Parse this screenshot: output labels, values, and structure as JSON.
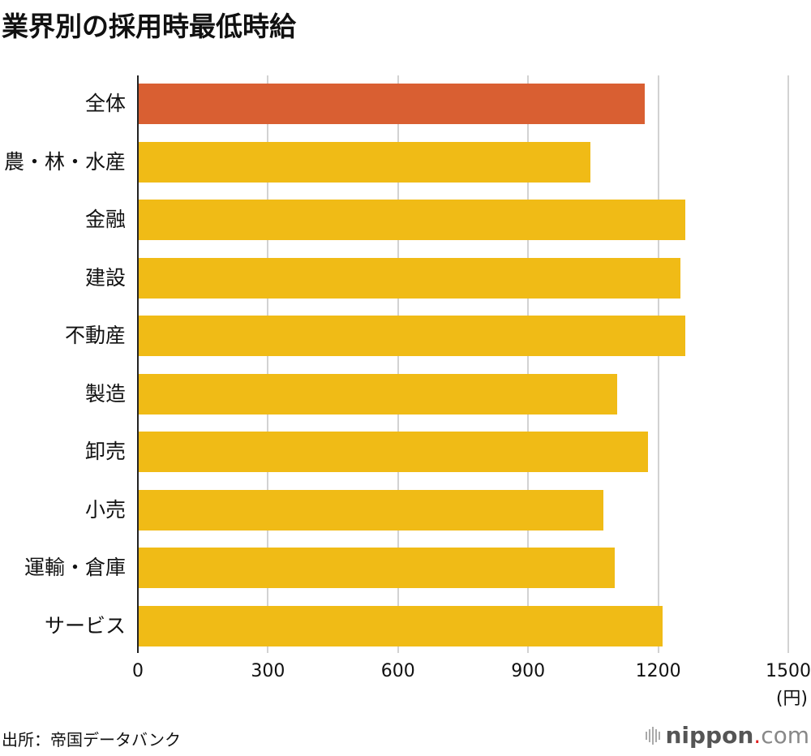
{
  "title": "業界別の採用時最低時給",
  "chart_data": {
    "type": "bar",
    "orientation": "horizontal",
    "title": "業界別の採用時最低時給",
    "xlabel": "(円)",
    "ylabel": "",
    "xlim": [
      0,
      1500
    ],
    "xticks": [
      "0",
      "300",
      "600",
      "900",
      "1200",
      "1500"
    ],
    "grid": true,
    "categories": [
      "全体",
      "農・林・水産",
      "金融",
      "建設",
      "不動産",
      "製造",
      "卸売",
      "小売",
      "運輸・倉庫",
      "サービス"
    ],
    "values": [
      1167,
      1042,
      1260,
      1249,
      1260,
      1103,
      1174,
      1072,
      1098,
      1208
    ],
    "colors": [
      "#d95f32",
      "#f0bb16",
      "#f0bb16",
      "#f0bb16",
      "#f0bb16",
      "#f0bb16",
      "#f0bb16",
      "#f0bb16",
      "#f0bb16",
      "#f0bb16"
    ]
  },
  "unit_label": "(円)",
  "source": "出所：帝国データバンク",
  "logo": {
    "main": "nippon",
    "dot": ".",
    "suffix": "com"
  }
}
